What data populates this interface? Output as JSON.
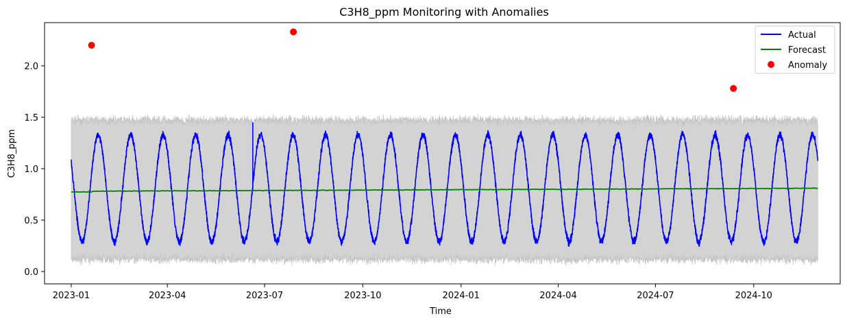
{
  "chart_data": {
    "type": "line",
    "title": "C3H8_ppm Monitoring with Anomalies",
    "xlabel": "Time",
    "ylabel": "C3H8_ppm",
    "xlim": [
      "2022-12-07",
      "2024-12-21"
    ],
    "ylim": [
      -0.12,
      2.42
    ],
    "x_ticks": [
      "2023-01",
      "2023-04",
      "2023-07",
      "2023-10",
      "2024-01",
      "2024-04",
      "2024-07",
      "2024-10"
    ],
    "y_ticks": [
      "0.0",
      "0.5",
      "1.0",
      "1.5",
      "2.0"
    ],
    "legend_position": "top-right",
    "grid": false,
    "data_start": "2023-01-01",
    "data_end": "2024-11-30",
    "series": [
      {
        "name": "Actual",
        "color": "#0000ff",
        "pattern": "sinusoid",
        "cycle_days": 30.4,
        "mean": 0.81,
        "amplitude": 0.52,
        "noise": 0.05
      },
      {
        "name": "Forecast",
        "color": "#008000",
        "start_value": 0.78,
        "end_value": 0.81
      }
    ],
    "confidence_band": {
      "color": "#d3d3d3",
      "upper_mean": 1.47,
      "lower_mean": 0.12
    },
    "anomalies": {
      "name": "Anomaly",
      "color": "#ff0000",
      "points": [
        {
          "x": "2023-01-20",
          "y": 2.2
        },
        {
          "x": "2023-07-28",
          "y": 2.33
        },
        {
          "x": "2024-09-12",
          "y": 1.78
        }
      ]
    }
  }
}
